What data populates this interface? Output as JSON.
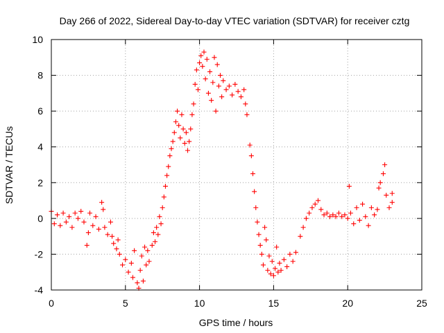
{
  "chart_data": {
    "type": "scatter",
    "title": "Day 266 of 2022, Sidereal Day-to-day VTEC variation (SDTVAR) for receiver cztg",
    "xlabel": "GPS time / hours",
    "ylabel": "SDTVAR / TECUs",
    "xlim": [
      0,
      25
    ],
    "ylim": [
      -4,
      10
    ],
    "x_ticks": [
      0,
      5,
      10,
      15,
      20,
      25
    ],
    "y_ticks": [
      -4,
      -2,
      0,
      2,
      4,
      6,
      8,
      10
    ],
    "x_tick_labels": [
      "0",
      "5",
      "10",
      "15",
      "20",
      "25"
    ],
    "y_tick_labels": [
      "-4",
      "-2",
      "0",
      "2",
      "4",
      "6",
      "8",
      "10"
    ],
    "grid": true,
    "marker": "plus",
    "series": [
      {
        "name": "SDTVAR",
        "color": "#ff0000",
        "points": [
          [
            0.0,
            0.4
          ],
          [
            0.2,
            -0.3
          ],
          [
            0.4,
            0.2
          ],
          [
            0.6,
            -0.4
          ],
          [
            0.8,
            0.3
          ],
          [
            1.0,
            -0.2
          ],
          [
            1.2,
            0.1
          ],
          [
            1.4,
            -0.5
          ],
          [
            1.6,
            0.3
          ],
          [
            1.8,
            0.0
          ],
          [
            2.0,
            0.4
          ],
          [
            2.2,
            -0.2
          ],
          [
            2.4,
            -1.5
          ],
          [
            2.5,
            -0.8
          ],
          [
            2.6,
            0.3
          ],
          [
            2.8,
            -0.4
          ],
          [
            3.0,
            0.1
          ],
          [
            3.2,
            -0.6
          ],
          [
            3.4,
            0.9
          ],
          [
            3.5,
            0.5
          ],
          [
            3.6,
            -0.5
          ],
          [
            3.8,
            -0.9
          ],
          [
            4.0,
            -0.2
          ],
          [
            4.1,
            -1.0
          ],
          [
            4.2,
            -1.4
          ],
          [
            4.4,
            -1.7
          ],
          [
            4.5,
            -1.2
          ],
          [
            4.6,
            -2.0
          ],
          [
            4.8,
            -2.6
          ],
          [
            5.0,
            -2.3
          ],
          [
            5.2,
            -3.0
          ],
          [
            5.4,
            -2.5
          ],
          [
            5.5,
            -3.3
          ],
          [
            5.6,
            -1.8
          ],
          [
            5.8,
            -3.6
          ],
          [
            5.9,
            -3.9
          ],
          [
            6.0,
            -2.9
          ],
          [
            6.1,
            -2.1
          ],
          [
            6.2,
            -3.5
          ],
          [
            6.3,
            -1.6
          ],
          [
            6.4,
            -2.6
          ],
          [
            6.5,
            -1.8
          ],
          [
            6.6,
            -2.4
          ],
          [
            6.8,
            -1.5
          ],
          [
            6.9,
            -0.8
          ],
          [
            7.0,
            -1.3
          ],
          [
            7.1,
            -0.5
          ],
          [
            7.2,
            -0.9
          ],
          [
            7.3,
            0.1
          ],
          [
            7.4,
            -0.3
          ],
          [
            7.5,
            0.6
          ],
          [
            7.6,
            1.2
          ],
          [
            7.7,
            1.8
          ],
          [
            7.8,
            2.4
          ],
          [
            7.9,
            2.9
          ],
          [
            8.0,
            3.5
          ],
          [
            8.1,
            3.9
          ],
          [
            8.2,
            4.3
          ],
          [
            8.3,
            4.8
          ],
          [
            8.4,
            5.4
          ],
          [
            8.5,
            6.0
          ],
          [
            8.6,
            5.2
          ],
          [
            8.7,
            4.5
          ],
          [
            8.8,
            5.8
          ],
          [
            8.9,
            5.0
          ],
          [
            9.0,
            4.2
          ],
          [
            9.1,
            4.8
          ],
          [
            9.2,
            3.8
          ],
          [
            9.3,
            4.3
          ],
          [
            9.4,
            5.0
          ],
          [
            9.5,
            5.8
          ],
          [
            9.6,
            6.4
          ],
          [
            9.7,
            7.5
          ],
          [
            9.8,
            8.3
          ],
          [
            9.9,
            7.2
          ],
          [
            10.0,
            8.7
          ],
          [
            10.1,
            9.1
          ],
          [
            10.2,
            8.5
          ],
          [
            10.3,
            9.3
          ],
          [
            10.4,
            7.8
          ],
          [
            10.5,
            8.9
          ],
          [
            10.6,
            7.0
          ],
          [
            10.7,
            8.2
          ],
          [
            10.8,
            6.6
          ],
          [
            10.9,
            7.6
          ],
          [
            11.0,
            9.0
          ],
          [
            11.1,
            6.0
          ],
          [
            11.2,
            8.6
          ],
          [
            11.3,
            7.4
          ],
          [
            11.4,
            8.0
          ],
          [
            11.5,
            6.8
          ],
          [
            11.6,
            7.7
          ],
          [
            11.8,
            7.2
          ],
          [
            12.0,
            7.4
          ],
          [
            12.2,
            6.9
          ],
          [
            12.4,
            7.5
          ],
          [
            12.6,
            7.1
          ],
          [
            12.8,
            6.8
          ],
          [
            13.0,
            7.2
          ],
          [
            13.1,
            6.4
          ],
          [
            13.2,
            5.8
          ],
          [
            13.4,
            4.1
          ],
          [
            13.5,
            3.5
          ],
          [
            13.6,
            2.5
          ],
          [
            13.7,
            1.5
          ],
          [
            13.8,
            0.6
          ],
          [
            13.9,
            -0.2
          ],
          [
            14.0,
            -0.9
          ],
          [
            14.1,
            -1.5
          ],
          [
            14.2,
            -2.0
          ],
          [
            14.3,
            -2.6
          ],
          [
            14.4,
            -0.5
          ],
          [
            14.5,
            -1.2
          ],
          [
            14.6,
            -2.9
          ],
          [
            14.7,
            -2.1
          ],
          [
            14.8,
            -3.1
          ],
          [
            14.9,
            -2.4
          ],
          [
            15.0,
            -3.2
          ],
          [
            15.1,
            -2.8
          ],
          [
            15.2,
            -1.6
          ],
          [
            15.3,
            -3.0
          ],
          [
            15.4,
            -2.5
          ],
          [
            15.5,
            -2.9
          ],
          [
            15.7,
            -2.3
          ],
          [
            15.9,
            -2.7
          ],
          [
            16.1,
            -2.0
          ],
          [
            16.3,
            -2.4
          ],
          [
            16.5,
            -1.9
          ],
          [
            16.8,
            -1.0
          ],
          [
            17.0,
            -0.5
          ],
          [
            17.2,
            0.0
          ],
          [
            17.4,
            0.3
          ],
          [
            17.6,
            0.6
          ],
          [
            17.8,
            0.8
          ],
          [
            18.0,
            1.0
          ],
          [
            18.2,
            0.5
          ],
          [
            18.4,
            0.2
          ],
          [
            18.6,
            0.3
          ],
          [
            18.8,
            0.1
          ],
          [
            19.0,
            0.2
          ],
          [
            19.2,
            0.1
          ],
          [
            19.4,
            0.3
          ],
          [
            19.6,
            0.1
          ],
          [
            19.8,
            0.2
          ],
          [
            20.0,
            0.0
          ],
          [
            20.1,
            1.8
          ],
          [
            20.2,
            0.3
          ],
          [
            20.4,
            -0.3
          ],
          [
            20.6,
            0.6
          ],
          [
            20.8,
            -0.1
          ],
          [
            21.0,
            0.8
          ],
          [
            21.2,
            0.1
          ],
          [
            21.4,
            -0.4
          ],
          [
            21.6,
            0.6
          ],
          [
            21.8,
            0.2
          ],
          [
            22.0,
            0.5
          ],
          [
            22.1,
            1.7
          ],
          [
            22.2,
            2.0
          ],
          [
            22.4,
            2.5
          ],
          [
            22.5,
            3.0
          ],
          [
            22.6,
            1.3
          ],
          [
            22.8,
            0.6
          ],
          [
            23.0,
            1.4
          ],
          [
            23.0,
            0.9
          ]
        ]
      }
    ]
  }
}
